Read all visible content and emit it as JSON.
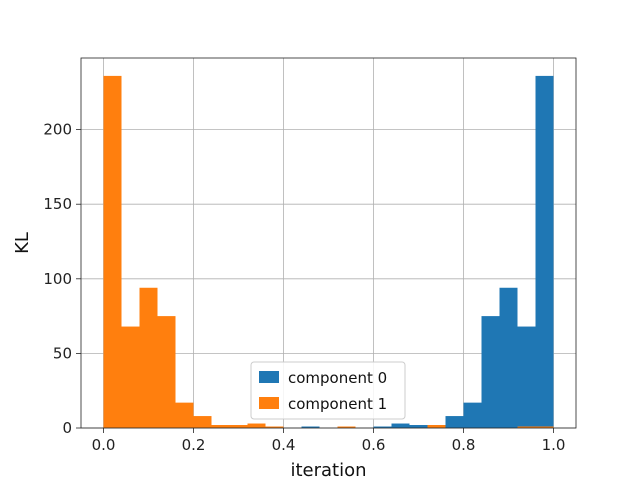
{
  "chart_data": {
    "type": "bar",
    "subtype": "histogram",
    "title": "",
    "xlabel": "iteration",
    "ylabel": "KL",
    "xlim": [
      -0.05,
      1.05
    ],
    "ylim": [
      0,
      248
    ],
    "xticks": [
      0.0,
      0.2,
      0.4,
      0.6,
      0.8,
      1.0
    ],
    "xtick_labels": [
      "0.0",
      "0.2",
      "0.4",
      "0.6",
      "0.8",
      "1.0"
    ],
    "yticks": [
      0,
      50,
      100,
      150,
      200
    ],
    "ytick_labels": [
      "0",
      "50",
      "100",
      "150",
      "200"
    ],
    "grid": true,
    "legend_position": "lower center",
    "bin_edges": [
      0.0,
      0.04,
      0.08,
      0.12,
      0.16,
      0.2,
      0.24,
      0.28,
      0.32,
      0.36,
      0.4,
      0.44,
      0.48,
      0.52,
      0.56,
      0.6,
      0.64,
      0.68,
      0.72,
      0.76,
      0.8,
      0.84,
      0.88,
      0.92,
      0.96,
      1.0
    ],
    "series": [
      {
        "name": "component 0",
        "color": "#1f77b4",
        "values": [
          0,
          0,
          0,
          0,
          0,
          0,
          0,
          0,
          0,
          0,
          0,
          1,
          0,
          0,
          0,
          1,
          3,
          2,
          2,
          8,
          17,
          75,
          94,
          68,
          236
        ]
      },
      {
        "name": "component 1",
        "color": "#ff7f0e",
        "values": [
          236,
          68,
          94,
          75,
          17,
          8,
          2,
          2,
          3,
          1,
          0,
          0,
          0,
          1,
          0,
          0,
          0,
          0,
          2,
          0,
          0,
          0,
          0,
          1,
          1
        ]
      }
    ]
  }
}
